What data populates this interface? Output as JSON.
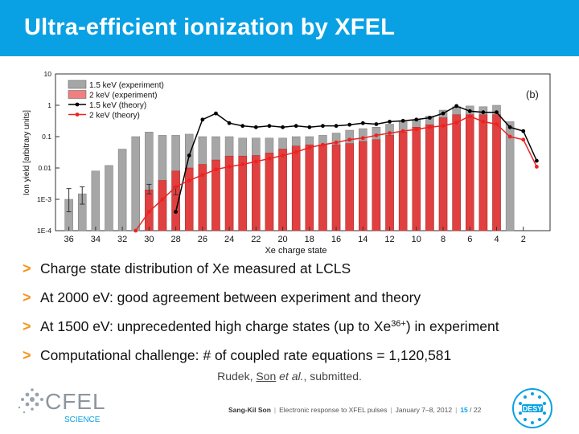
{
  "slide": {
    "title": "Ultra-efficient ionization by XFEL",
    "bullets": [
      {
        "marker": ">",
        "text": "Charge state distribution of Xe measured at LCLS"
      },
      {
        "marker": ">",
        "text": "At 2000 eV: good agreement between experiment and theory"
      },
      {
        "marker": ">",
        "text_before": "At 1500 eV: unprecedented high charge states (up to Xe",
        "sup": "36+",
        "text_after": ") in experiment"
      },
      {
        "marker": ">",
        "text": "Computational challenge: # of coupled rate equations = 1,120,581"
      }
    ],
    "citation": {
      "author1": "Rudek,",
      "author2": "Son",
      "etal": "et al.",
      "rest": ", submitted."
    }
  },
  "footer": {
    "author": "Sang-Kil Son",
    "talk": "Electronic response to XFEL pulses",
    "date": "January 7–8, 2012",
    "page": "15",
    "total": "/ 22",
    "cfel_logo_text": "CFEL",
    "cfel_sub": "SCIENCE",
    "desy_logo_text": "DESY"
  },
  "colors": {
    "title_bg": "#0aa1e4",
    "bullet_marker": "#f7941d",
    "exp_1500": "#a6a6a6",
    "exp_2000": "#e04040",
    "theory_1500": "#000000",
    "theory_2000": "#ee2222"
  },
  "chart_data": {
    "type": "bar",
    "panel_label": "(b)",
    "xlabel": "Xe charge state",
    "ylabel": "Ion yield [arbitrary units]",
    "x_reversed": true,
    "y_scale": "log",
    "ylim": [
      0.0001,
      10
    ],
    "yticks": [
      {
        "value": 10,
        "label": "10"
      },
      {
        "value": 1,
        "label": "1"
      },
      {
        "value": 0.1,
        "label": "0.1"
      },
      {
        "value": 0.01,
        "label": "0.01"
      },
      {
        "value": 0.001,
        "label": "1E-3"
      },
      {
        "value": 0.0001,
        "label": "1E-4"
      }
    ],
    "xticks": [
      36,
      34,
      32,
      30,
      28,
      26,
      24,
      22,
      20,
      18,
      16,
      14,
      12,
      10,
      8,
      6,
      4,
      2
    ],
    "xlim": [
      37,
      0
    ],
    "legend": [
      {
        "label": "1.5 keV (experiment)",
        "kind": "box",
        "color": "#a6a6a6"
      },
      {
        "label": "2    keV (experiment)",
        "kind": "box",
        "color": "#f08080"
      },
      {
        "label": "1.5 keV (theory)",
        "kind": "line",
        "color": "#000000"
      },
      {
        "label": "2    keV (theory)",
        "kind": "line",
        "color": "#ee2222"
      }
    ],
    "legend_position": "top-left",
    "series": [
      {
        "name": "1.5 keV (experiment)",
        "kind": "bar",
        "x": [
          36,
          35,
          34,
          33,
          32,
          31,
          30,
          29,
          28,
          27,
          26,
          25,
          24,
          23,
          22,
          21,
          20,
          19,
          18,
          17,
          16,
          15,
          14,
          13,
          12,
          11,
          10,
          9,
          8,
          7,
          6,
          5,
          4,
          3
        ],
        "y": [
          0.001,
          0.0015,
          0.008,
          0.012,
          0.04,
          0.1,
          0.14,
          0.11,
          0.11,
          0.12,
          0.1,
          0.1,
          0.1,
          0.09,
          0.09,
          0.09,
          0.09,
          0.1,
          0.1,
          0.11,
          0.13,
          0.16,
          0.18,
          0.2,
          0.25,
          0.3,
          0.35,
          0.45,
          0.7,
          0.9,
          0.95,
          0.9,
          1.0,
          0.3
        ],
        "error_x": [
          36,
          35,
          30,
          28
        ],
        "error_lo": [
          0.0004,
          0.0007,
          0.0015,
          0.0014
        ],
        "error_hi": [
          0.0022,
          0.0025,
          0.003,
          0.0025
        ]
      },
      {
        "name": "2 keV (experiment)",
        "kind": "bar",
        "x": [
          30,
          29,
          28,
          27,
          26,
          25,
          24,
          23,
          22,
          21,
          20,
          19,
          18,
          17,
          16,
          15,
          14,
          13,
          12,
          11,
          10,
          9,
          8,
          7,
          6,
          5,
          4
        ],
        "y": [
          0.002,
          0.004,
          0.008,
          0.01,
          0.013,
          0.018,
          0.024,
          0.024,
          0.025,
          0.03,
          0.04,
          0.05,
          0.055,
          0.055,
          0.055,
          0.06,
          0.07,
          0.08,
          0.11,
          0.14,
          0.2,
          0.24,
          0.4,
          0.5,
          0.5,
          0.5,
          0.5
        ]
      },
      {
        "name": "1.5 keV (theory)",
        "kind": "line",
        "x": [
          28,
          27,
          26,
          25,
          24,
          23,
          22,
          21,
          20,
          19,
          18,
          17,
          16,
          15,
          14,
          13,
          12,
          11,
          10,
          9,
          8,
          7,
          6,
          5,
          4,
          3,
          2,
          1
        ],
        "y": [
          0.0004,
          0.025,
          0.35,
          0.55,
          0.27,
          0.22,
          0.2,
          0.22,
          0.2,
          0.22,
          0.2,
          0.22,
          0.22,
          0.24,
          0.27,
          0.25,
          0.3,
          0.32,
          0.35,
          0.4,
          0.55,
          0.95,
          0.65,
          0.6,
          0.6,
          0.2,
          0.15,
          0.017
        ]
      },
      {
        "name": "2 keV (theory)",
        "kind": "line",
        "x": [
          31,
          30,
          29,
          28,
          27,
          26,
          25,
          24,
          23,
          22,
          21,
          20,
          19,
          18,
          17,
          16,
          15,
          14,
          13,
          12,
          11,
          10,
          9,
          8,
          7,
          6,
          5,
          4,
          3,
          2,
          1
        ],
        "y": [
          0.0001,
          0.0004,
          0.001,
          0.0025,
          0.004,
          0.006,
          0.009,
          0.011,
          0.013,
          0.016,
          0.02,
          0.025,
          0.032,
          0.045,
          0.055,
          0.065,
          0.08,
          0.09,
          0.11,
          0.13,
          0.15,
          0.17,
          0.2,
          0.22,
          0.28,
          0.45,
          0.3,
          0.25,
          0.1,
          0.08,
          0.011
        ]
      }
    ]
  }
}
